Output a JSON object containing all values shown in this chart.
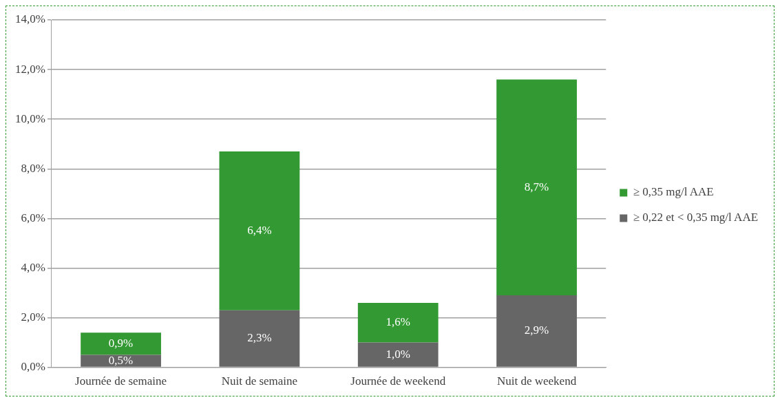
{
  "chart_data": {
    "type": "bar",
    "stacked": true,
    "categories": [
      "Journée de semaine",
      "Nuit de semaine",
      "Journée de weekend",
      "Nuit de weekend"
    ],
    "series": [
      {
        "name": "≥ 0,22 et < 0,35 mg/l AAE",
        "color": "#666666",
        "values": [
          0.5,
          2.3,
          1.0,
          2.9
        ],
        "value_labels": [
          "0,5%",
          "2,3%",
          "1,0%",
          "2,9%"
        ]
      },
      {
        "name": "≥ 0,35 mg/l AAE",
        "color": "#339933",
        "values": [
          0.9,
          6.4,
          1.6,
          8.7
        ],
        "value_labels": [
          "0,9%",
          "6,4%",
          "1,6%",
          "8,7%"
        ]
      }
    ],
    "ylim": [
      0,
      14
    ],
    "yticks": [
      {
        "value": 0,
        "label": "0,0%"
      },
      {
        "value": 2,
        "label": "2,0%"
      },
      {
        "value": 4,
        "label": "4,0%"
      },
      {
        "value": 6,
        "label": "6,0%"
      },
      {
        "value": 8,
        "label": "8,0%"
      },
      {
        "value": 10,
        "label": "10,0%"
      },
      {
        "value": 12,
        "label": "12,0%"
      },
      {
        "value": 14,
        "label": "14,0%"
      }
    ],
    "grid": "y",
    "legend": "right"
  }
}
